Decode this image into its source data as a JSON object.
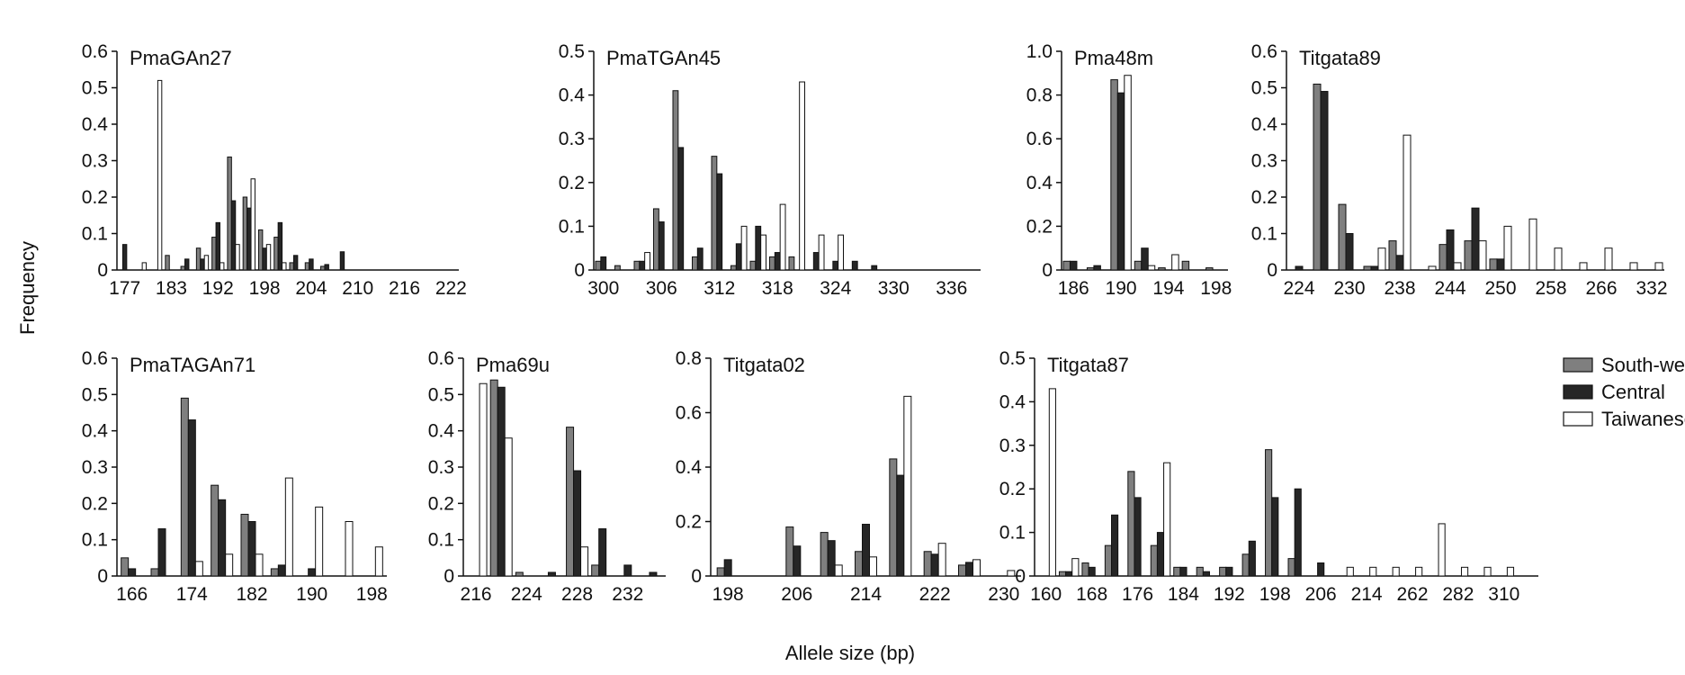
{
  "figure": {
    "ylabel": "Frequency",
    "xlabel": "Allele size (bp)",
    "legend": [
      "South-western",
      "Central",
      "Taiwanese"
    ]
  },
  "colors": {
    "south_western": "#7f7f7f",
    "central": "#262626",
    "taiwanese": "#ffffff",
    "outline": "#111111"
  },
  "chart_data": [
    {
      "type": "bar",
      "title": "PmaGAn27",
      "ylim": [
        0,
        0.6
      ],
      "yticks": [
        "0",
        "0.1",
        "0.2",
        "0.3",
        "0.4",
        "0.5",
        "0.6"
      ],
      "categories": [
        "177",
        "",
        "",
        "183",
        "",
        "",
        "192",
        "",
        "",
        "198",
        "",
        "",
        "204",
        "",
        "",
        "210",
        "",
        "",
        "216",
        "",
        "",
        "222"
      ],
      "series": [
        {
          "name": "South-western",
          "values": [
            0,
            0,
            0,
            0.04,
            0.01,
            0.06,
            0.09,
            0.31,
            0.2,
            0.11,
            0.09,
            0.02,
            0.02,
            0.01,
            0,
            0,
            0,
            0,
            0,
            0,
            0,
            0
          ]
        },
        {
          "name": "Central",
          "values": [
            0.07,
            0,
            0,
            0,
            0.03,
            0.03,
            0.13,
            0.19,
            0.17,
            0.06,
            0.13,
            0.04,
            0.03,
            0.015,
            0.05,
            0,
            0,
            0,
            0,
            0,
            0,
            0
          ]
        },
        {
          "name": "Taiwanese",
          "values": [
            0,
            0.02,
            0.52,
            0,
            0,
            0.04,
            0.02,
            0.07,
            0.25,
            0.07,
            0.02,
            0,
            0,
            0,
            0,
            0,
            0,
            0,
            0,
            0,
            0,
            0
          ]
        }
      ]
    },
    {
      "type": "bar",
      "title": "PmaTGAn45",
      "ylim": [
        0,
        0.5
      ],
      "yticks": [
        "0",
        "0.1",
        "0.2",
        "0.3",
        "0.4",
        "0.5"
      ],
      "categories": [
        "300",
        "",
        "",
        "306",
        "",
        "",
        "312",
        "",
        "",
        "318",
        "",
        "",
        "324",
        "",
        "",
        "330",
        "",
        "",
        "336",
        ""
      ],
      "series": [
        {
          "name": "South-western",
          "values": [
            0.02,
            0.01,
            0.02,
            0.14,
            0.41,
            0.03,
            0.26,
            0.01,
            0.02,
            0.03,
            0.03,
            0,
            0,
            0,
            0,
            0,
            0,
            0,
            0,
            0
          ]
        },
        {
          "name": "Central",
          "values": [
            0.03,
            0,
            0.02,
            0.11,
            0.28,
            0.05,
            0.22,
            0.06,
            0.1,
            0.04,
            0,
            0.04,
            0.02,
            0.02,
            0.01,
            0,
            0,
            0,
            0,
            0
          ]
        },
        {
          "name": "Taiwanese",
          "values": [
            0,
            0,
            0.04,
            0,
            0,
            0,
            0,
            0.1,
            0.08,
            0.15,
            0.43,
            0.08,
            0.08,
            0,
            0,
            0,
            0,
            0,
            0,
            0
          ]
        }
      ]
    },
    {
      "type": "bar",
      "title": "Pma48m",
      "ylim": [
        0,
        1.0
      ],
      "yticks": [
        "0",
        "0.2",
        "0.4",
        "0.6",
        "0.8",
        "1.0"
      ],
      "categories": [
        "186",
        "",
        "190",
        "",
        "194",
        "",
        "198"
      ],
      "series": [
        {
          "name": "South-western",
          "values": [
            0.04,
            0.01,
            0.87,
            0.04,
            0.01,
            0.04,
            0.01
          ]
        },
        {
          "name": "Central",
          "values": [
            0.04,
            0.02,
            0.81,
            0.1,
            0,
            0,
            0
          ]
        },
        {
          "name": "Taiwanese",
          "values": [
            0,
            0,
            0.89,
            0.02,
            0.07,
            0,
            0
          ]
        }
      ]
    },
    {
      "type": "bar",
      "title": "Titgata89",
      "ylim": [
        0,
        0.6
      ],
      "yticks": [
        "0",
        "0.1",
        "0.2",
        "0.3",
        "0.4",
        "0.5",
        "0.6"
      ],
      "categories": [
        "224",
        "",
        "230",
        "",
        "238",
        "",
        "244",
        "",
        "250",
        "",
        "258",
        "",
        "266",
        "",
        "332"
      ],
      "series": [
        {
          "name": "South-western",
          "values": [
            0,
            0.51,
            0.18,
            0.01,
            0.08,
            0,
            0.07,
            0.08,
            0.03,
            0,
            0,
            0,
            0,
            0,
            0
          ]
        },
        {
          "name": "Central",
          "values": [
            0.01,
            0.49,
            0.1,
            0.01,
            0.04,
            0,
            0.11,
            0.17,
            0.03,
            0,
            0,
            0,
            0,
            0,
            0
          ]
        },
        {
          "name": "Taiwanese",
          "values": [
            0,
            0,
            0,
            0.06,
            0.37,
            0.01,
            0.02,
            0.08,
            0.12,
            0.14,
            0.06,
            0.02,
            0.06,
            0.02,
            0.02
          ]
        }
      ]
    },
    {
      "type": "bar",
      "title": "PmaTAGAn71",
      "ylim": [
        0,
        0.6
      ],
      "yticks": [
        "0",
        "0.1",
        "0.2",
        "0.3",
        "0.4",
        "0.5",
        "0.6"
      ],
      "categories": [
        "166",
        "",
        "174",
        "",
        "182",
        "",
        "190",
        "",
        "198"
      ],
      "series": [
        {
          "name": "South-western",
          "values": [
            0.05,
            0.02,
            0.49,
            0.25,
            0.17,
            0.02,
            0,
            0,
            0
          ]
        },
        {
          "name": "Central",
          "values": [
            0.02,
            0.13,
            0.43,
            0.21,
            0.15,
            0.03,
            0.02,
            0,
            0
          ]
        },
        {
          "name": "Taiwanese",
          "values": [
            0,
            0,
            0.04,
            0.06,
            0.06,
            0.27,
            0.19,
            0.15,
            0.08
          ]
        }
      ]
    },
    {
      "type": "bar",
      "title": "Pma69u",
      "ylim": [
        0,
        0.6
      ],
      "yticks": [
        "0",
        "0.1",
        "0.2",
        "0.3",
        "0.4",
        "0.5",
        "0.6"
      ],
      "categories": [
        "216",
        "",
        "224",
        "",
        "228",
        "",
        "232",
        ""
      ],
      "series": [
        {
          "name": "South-western",
          "values": [
            0,
            0.54,
            0.01,
            0,
            0.41,
            0.03,
            0,
            0
          ]
        },
        {
          "name": "Central",
          "values": [
            0,
            0.52,
            0,
            0.01,
            0.29,
            0.13,
            0.03,
            0.01
          ]
        },
        {
          "name": "Taiwanese",
          "values": [
            0.53,
            0.38,
            0,
            0,
            0.08,
            0,
            0,
            0
          ]
        }
      ]
    },
    {
      "type": "bar",
      "title": "Titgata02",
      "ylim": [
        0,
        0.8
      ],
      "yticks": [
        "0",
        "0.2",
        "0.4",
        "0.6",
        "0.8"
      ],
      "categories": [
        "198",
        "",
        "206",
        "",
        "214",
        "",
        "222",
        "",
        "230"
      ],
      "series": [
        {
          "name": "South-western",
          "values": [
            0.03,
            0,
            0.18,
            0.16,
            0.09,
            0.43,
            0.09,
            0.04,
            0
          ]
        },
        {
          "name": "Central",
          "values": [
            0.06,
            0,
            0.11,
            0.13,
            0.19,
            0.37,
            0.08,
            0.05,
            0
          ]
        },
        {
          "name": "Taiwanese",
          "values": [
            0,
            0,
            0,
            0.04,
            0.07,
            0.66,
            0.12,
            0.06,
            0.02
          ]
        }
      ]
    },
    {
      "type": "bar",
      "title": "Titgata87",
      "ylim": [
        0,
        0.5
      ],
      "yticks": [
        "0",
        "0.1",
        "0.2",
        "0.3",
        "0.4",
        "0.5"
      ],
      "categories": [
        "160",
        "",
        "168",
        "",
        "176",
        "",
        "184",
        "",
        "192",
        "",
        "198",
        "",
        "206",
        "",
        "214",
        "",
        "262",
        "",
        "282",
        "",
        "310",
        ""
      ],
      "series": [
        {
          "name": "South-western",
          "values": [
            0,
            0.01,
            0.03,
            0.07,
            0.24,
            0.07,
            0.02,
            0.02,
            0.02,
            0.05,
            0.29,
            0.04,
            0,
            0,
            0,
            0,
            0,
            0,
            0,
            0,
            0,
            0
          ]
        },
        {
          "name": "Central",
          "values": [
            0,
            0.01,
            0.02,
            0.14,
            0.18,
            0.1,
            0.02,
            0.01,
            0.02,
            0.08,
            0.18,
            0.2,
            0.03,
            0,
            0,
            0,
            0,
            0,
            0,
            0,
            0,
            0
          ]
        },
        {
          "name": "Taiwanese",
          "values": [
            0.43,
            0.04,
            0,
            0,
            0,
            0.26,
            0,
            0,
            0,
            0,
            0,
            0,
            0,
            0.02,
            0.02,
            0.02,
            0.02,
            0.12,
            0.02,
            0.02,
            0.02,
            0
          ]
        }
      ]
    }
  ]
}
